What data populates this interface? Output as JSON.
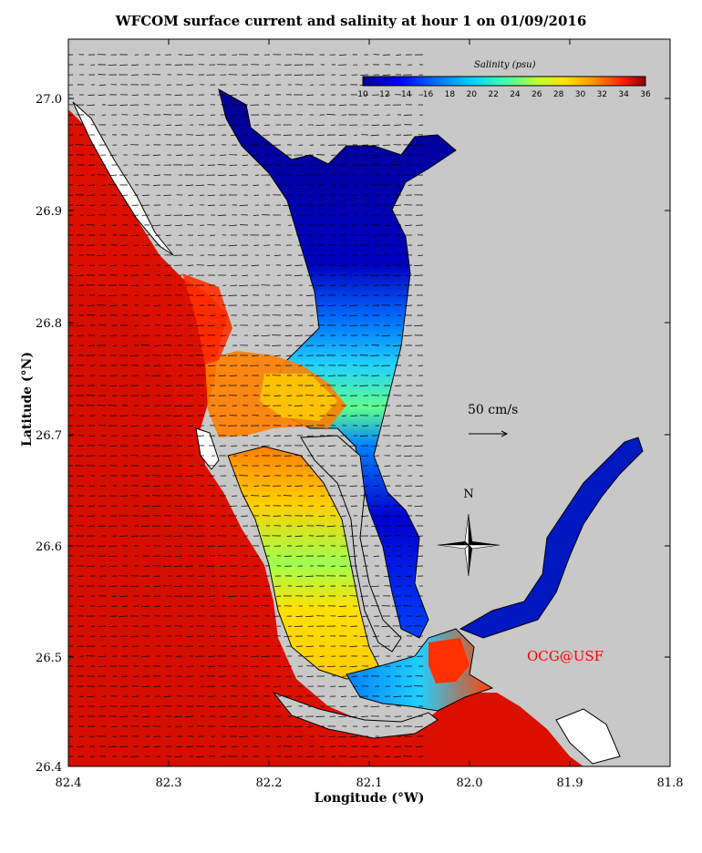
{
  "title": "WFCOM surface current and salinity at hour 1 on 01/09/2016",
  "xlabel": "Longitude (°W)",
  "ylabel": "Latitude (°N)",
  "x_ticks": [
    "82.4",
    "82.3",
    "82.2",
    "82.1",
    "82.0",
    "81.9",
    "81.8"
  ],
  "y_ticks": [
    "27.0",
    "26.9",
    "26.8",
    "26.7",
    "26.6",
    "26.5",
    "26.4"
  ],
  "colorbar": {
    "title": "Salinity (psu)",
    "ticks": [
      "10",
      "12",
      "14",
      "16",
      "18",
      "20",
      "22",
      "24",
      "26",
      "28",
      "30",
      "32",
      "34",
      "36"
    ],
    "colors": [
      "#00008f",
      "#0000d0",
      "#0040ff",
      "#0080ff",
      "#00c0ff",
      "#20ffe0",
      "#60ff90",
      "#a0ff50",
      "#e0ff10",
      "#ffd000",
      "#ff9000",
      "#ff5000",
      "#ff1000",
      "#c00000"
    ]
  },
  "scale_label": "50 cm/s",
  "north_label": "N",
  "credit": "OCG@USF",
  "colors": {
    "land": "#c8c8c8",
    "sea": "#dd1000",
    "frame": "#000000"
  }
}
